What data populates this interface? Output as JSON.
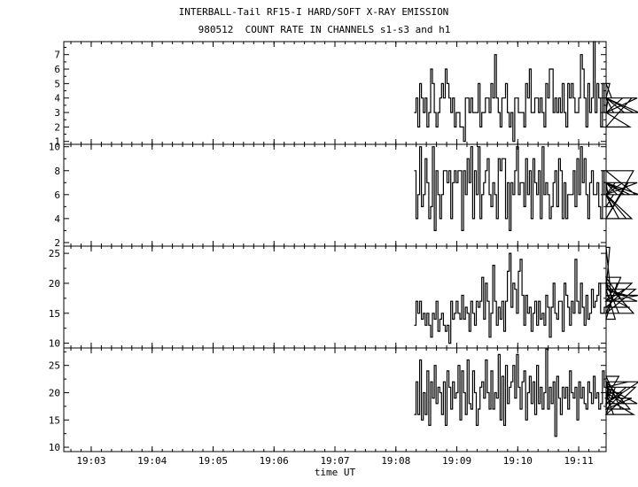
{
  "title": "INTERBALL-Tail RF15-I HARD/SOFT X-RAY EMISSION",
  "subtitle": "980512  COUNT RATE IN CHANNELS s1-s3 and h1",
  "chart_data": {
    "type": "line",
    "title": "INTERBALL-Tail RF15-I HARD/SOFT X-RAY EMISSION",
    "subtitle": "980512  COUNT RATE IN CHANNELS s1-s3 and h1",
    "xlabel": "time UT",
    "x_tick_labels": [
      "19:03",
      "19:04",
      "19:05",
      "19:06",
      "19:07",
      "19:08",
      "19:09",
      "19:10",
      "19:11"
    ],
    "x_ticks_min": [
      3,
      4,
      5,
      6,
      7,
      8,
      9,
      10,
      11
    ],
    "xlim_min": [
      2.55,
      11.45
    ],
    "step": "histogram",
    "panels": [
      {
        "ylim": [
          0.8,
          7.9
        ],
        "yticks": [
          1,
          2,
          3,
          4,
          5,
          6,
          7
        ],
        "t_start_min": 8.3,
        "t_step_min": 0.03,
        "values": [
          3,
          4,
          2,
          5,
          4,
          3,
          4,
          2,
          3,
          6,
          5,
          3,
          2,
          3,
          4,
          5,
          4,
          6,
          5,
          4,
          3,
          4,
          2,
          3,
          3,
          2,
          2,
          1,
          4,
          4,
          3,
          4,
          3,
          3,
          3,
          5,
          2,
          3,
          3,
          4,
          4,
          3,
          5,
          4,
          7,
          4,
          3,
          2,
          4,
          4,
          5,
          3,
          2,
          3,
          1,
          4,
          4,
          3,
          3,
          3,
          2,
          5,
          4,
          6,
          3,
          3,
          4,
          4,
          3,
          4,
          3,
          2,
          5,
          4,
          6,
          6,
          3,
          4,
          3,
          4,
          3,
          5,
          3,
          2,
          5,
          4,
          5,
          4,
          3,
          3,
          4,
          7,
          6,
          4,
          2,
          5,
          3,
          4,
          8,
          3,
          5,
          4,
          2,
          5,
          3,
          3,
          4,
          5,
          4,
          3,
          3,
          3,
          3,
          3,
          4,
          3,
          3,
          3,
          2,
          4,
          3,
          3,
          4,
          3
        ]
      },
      {
        "ylim": [
          1.7,
          10.2
        ],
        "yticks": [
          2,
          4,
          6,
          8,
          10
        ],
        "t_start_min": 8.3,
        "t_step_min": 0.03,
        "values": [
          8,
          4,
          6,
          10,
          5,
          6,
          9,
          7,
          4,
          5,
          10,
          3,
          8,
          6,
          4,
          6,
          8,
          8,
          7,
          8,
          4,
          7,
          8,
          7,
          8,
          8,
          3,
          8,
          6,
          9,
          7,
          10,
          4,
          8,
          6,
          10,
          4,
          6,
          7,
          8,
          9,
          6,
          5,
          7,
          6,
          4,
          9,
          8,
          9,
          9,
          4,
          7,
          3,
          7,
          6,
          8,
          10,
          6,
          7,
          7,
          5,
          9,
          6,
          8,
          4,
          9,
          7,
          6,
          8,
          4,
          10,
          6,
          7,
          6,
          4,
          5,
          7,
          8,
          5,
          9,
          8,
          4,
          7,
          4,
          6,
          6,
          6,
          8,
          5,
          9,
          6,
          10,
          7,
          9,
          6,
          4,
          7,
          8,
          6,
          6,
          7,
          5,
          4,
          8,
          6,
          7,
          6,
          6,
          5,
          6,
          7,
          6,
          4,
          6,
          7,
          6,
          4,
          7,
          6,
          4,
          8,
          6,
          7,
          6
        ]
      },
      {
        "ylim": [
          9.2,
          26.2
        ],
        "yticks": [
          10,
          15,
          20,
          25
        ],
        "t_start_min": 8.3,
        "t_step_min": 0.03,
        "values": [
          13,
          17,
          15,
          17,
          14,
          15,
          13,
          15,
          13,
          11,
          15,
          14,
          17,
          12,
          14,
          15,
          13,
          12,
          13,
          10,
          17,
          14,
          15,
          17,
          15,
          14,
          18,
          14,
          16,
          15,
          12,
          17,
          15,
          13,
          17,
          16,
          17,
          21,
          14,
          20,
          17,
          11,
          15,
          23,
          17,
          13,
          16,
          14,
          17,
          12,
          17,
          22,
          25,
          16,
          20,
          19,
          15,
          22,
          24,
          18,
          13,
          18,
          15,
          16,
          12,
          15,
          17,
          13,
          17,
          14,
          15,
          13,
          18,
          16,
          11,
          16,
          20,
          15,
          14,
          17,
          17,
          12,
          20,
          18,
          16,
          13,
          17,
          15,
          24,
          17,
          15,
          20,
          16,
          13,
          18,
          14,
          15,
          19,
          16,
          17,
          18,
          20,
          15,
          15,
          16,
          20,
          19,
          26,
          17,
          19,
          14,
          20,
          15,
          21,
          17,
          19,
          18,
          16,
          16,
          20,
          15,
          19,
          17,
          18
        ]
      },
      {
        "ylim": [
          9.2,
          28.2
        ],
        "yticks": [
          10,
          15,
          20,
          25
        ],
        "t_start_min": 8.3,
        "t_step_min": 0.03,
        "values": [
          16,
          22,
          16,
          26,
          15,
          20,
          16,
          24,
          14,
          22,
          19,
          25,
          18,
          21,
          20,
          16,
          22,
          14,
          24,
          21,
          17,
          22,
          19,
          20,
          25,
          15,
          24,
          20,
          16,
          26,
          18,
          17,
          24,
          20,
          14,
          17,
          21,
          22,
          19,
          26,
          20,
          17,
          24,
          17,
          20,
          19,
          27,
          15,
          23,
          14,
          25,
          18,
          21,
          22,
          25,
          19,
          27,
          21,
          17,
          22,
          24,
          15,
          20,
          23,
          18,
          22,
          16,
          25,
          18,
          21,
          17,
          20,
          28,
          17,
          21,
          18,
          22,
          12,
          23,
          19,
          16,
          21,
          19,
          21,
          17,
          24,
          20,
          19,
          21,
          15,
          22,
          19,
          21,
          18,
          17,
          22,
          20,
          18,
          23,
          19,
          20,
          17,
          18,
          24,
          21,
          17,
          22,
          19,
          20,
          16,
          21,
          19,
          23,
          17,
          20,
          18,
          21,
          22,
          17,
          19,
          16,
          21,
          18,
          22
        ]
      }
    ]
  }
}
